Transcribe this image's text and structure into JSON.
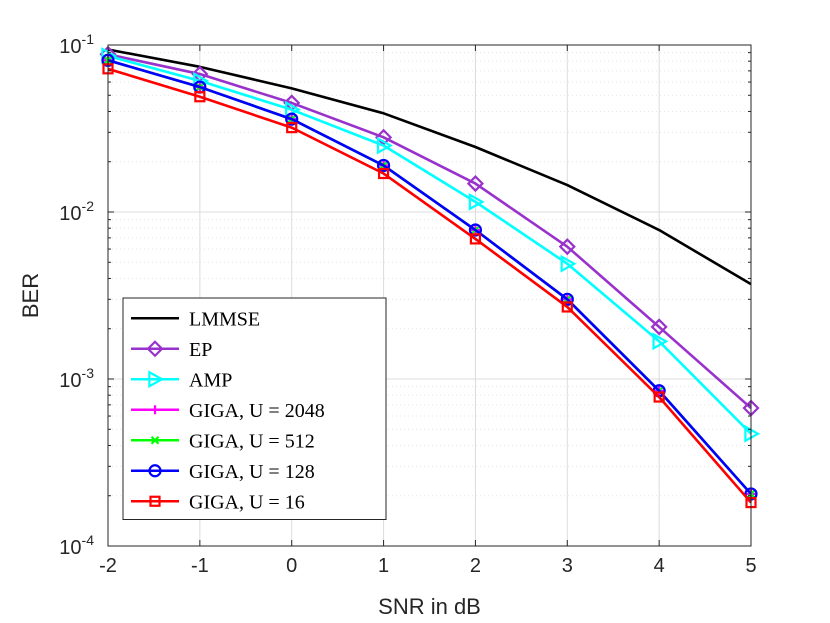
{
  "chart_data": {
    "type": "line",
    "title": "",
    "xlabel": "SNR in dB",
    "ylabel": "BER",
    "x": [
      -2,
      -1,
      0,
      1,
      2,
      3,
      4,
      5
    ],
    "xlim": [
      -2,
      5
    ],
    "ylim": [
      0.0001,
      0.1
    ],
    "yscale": "log",
    "grid": true,
    "legend_position": "lower-left",
    "xticks": [
      "-2",
      "-1",
      "0",
      "1",
      "2",
      "3",
      "4",
      "5"
    ],
    "yticks": [
      {
        "value": 0.1,
        "base": "10",
        "exp": "-1"
      },
      {
        "value": 0.01,
        "base": "10",
        "exp": "-2"
      },
      {
        "value": 0.001,
        "base": "10",
        "exp": "-3"
      },
      {
        "value": 0.0001,
        "base": "10",
        "exp": "-4"
      }
    ],
    "series": [
      {
        "name": "LMMSE",
        "color": "#000000",
        "marker": "none",
        "values": [
          0.094,
          0.074,
          0.055,
          0.039,
          0.0245,
          0.0145,
          0.0078,
          0.0037
        ]
      },
      {
        "name": "EP",
        "color": "#9932CC",
        "marker": "diamond",
        "values": [
          0.088,
          0.067,
          0.045,
          0.028,
          0.0148,
          0.0062,
          0.00205,
          0.00067
        ]
      },
      {
        "name": "AMP",
        "color": "#00FFFF",
        "marker": "triangle-right",
        "values": [
          0.086,
          0.061,
          0.041,
          0.025,
          0.0115,
          0.0049,
          0.00168,
          0.00047
        ]
      },
      {
        "name": "GIGA, U = 2048",
        "color": "#FF00FF",
        "marker": "plus",
        "values": [
          0.081,
          0.056,
          0.036,
          0.019,
          0.0078,
          0.003,
          0.00085,
          0.000205
        ]
      },
      {
        "name": "GIGA, U = 512",
        "color": "#00FF00",
        "marker": "x",
        "values": [
          0.081,
          0.056,
          0.036,
          0.019,
          0.0078,
          0.003,
          0.00085,
          0.000205
        ]
      },
      {
        "name": "GIGA, U = 128",
        "color": "#0000FF",
        "marker": "circle",
        "values": [
          0.081,
          0.056,
          0.036,
          0.019,
          0.0078,
          0.003,
          0.00085,
          0.000205
        ]
      },
      {
        "name": "GIGA, U = 16",
        "color": "#FF0000",
        "marker": "square",
        "values": [
          0.072,
          0.049,
          0.032,
          0.017,
          0.0069,
          0.0027,
          0.00078,
          0.000182
        ]
      }
    ]
  }
}
